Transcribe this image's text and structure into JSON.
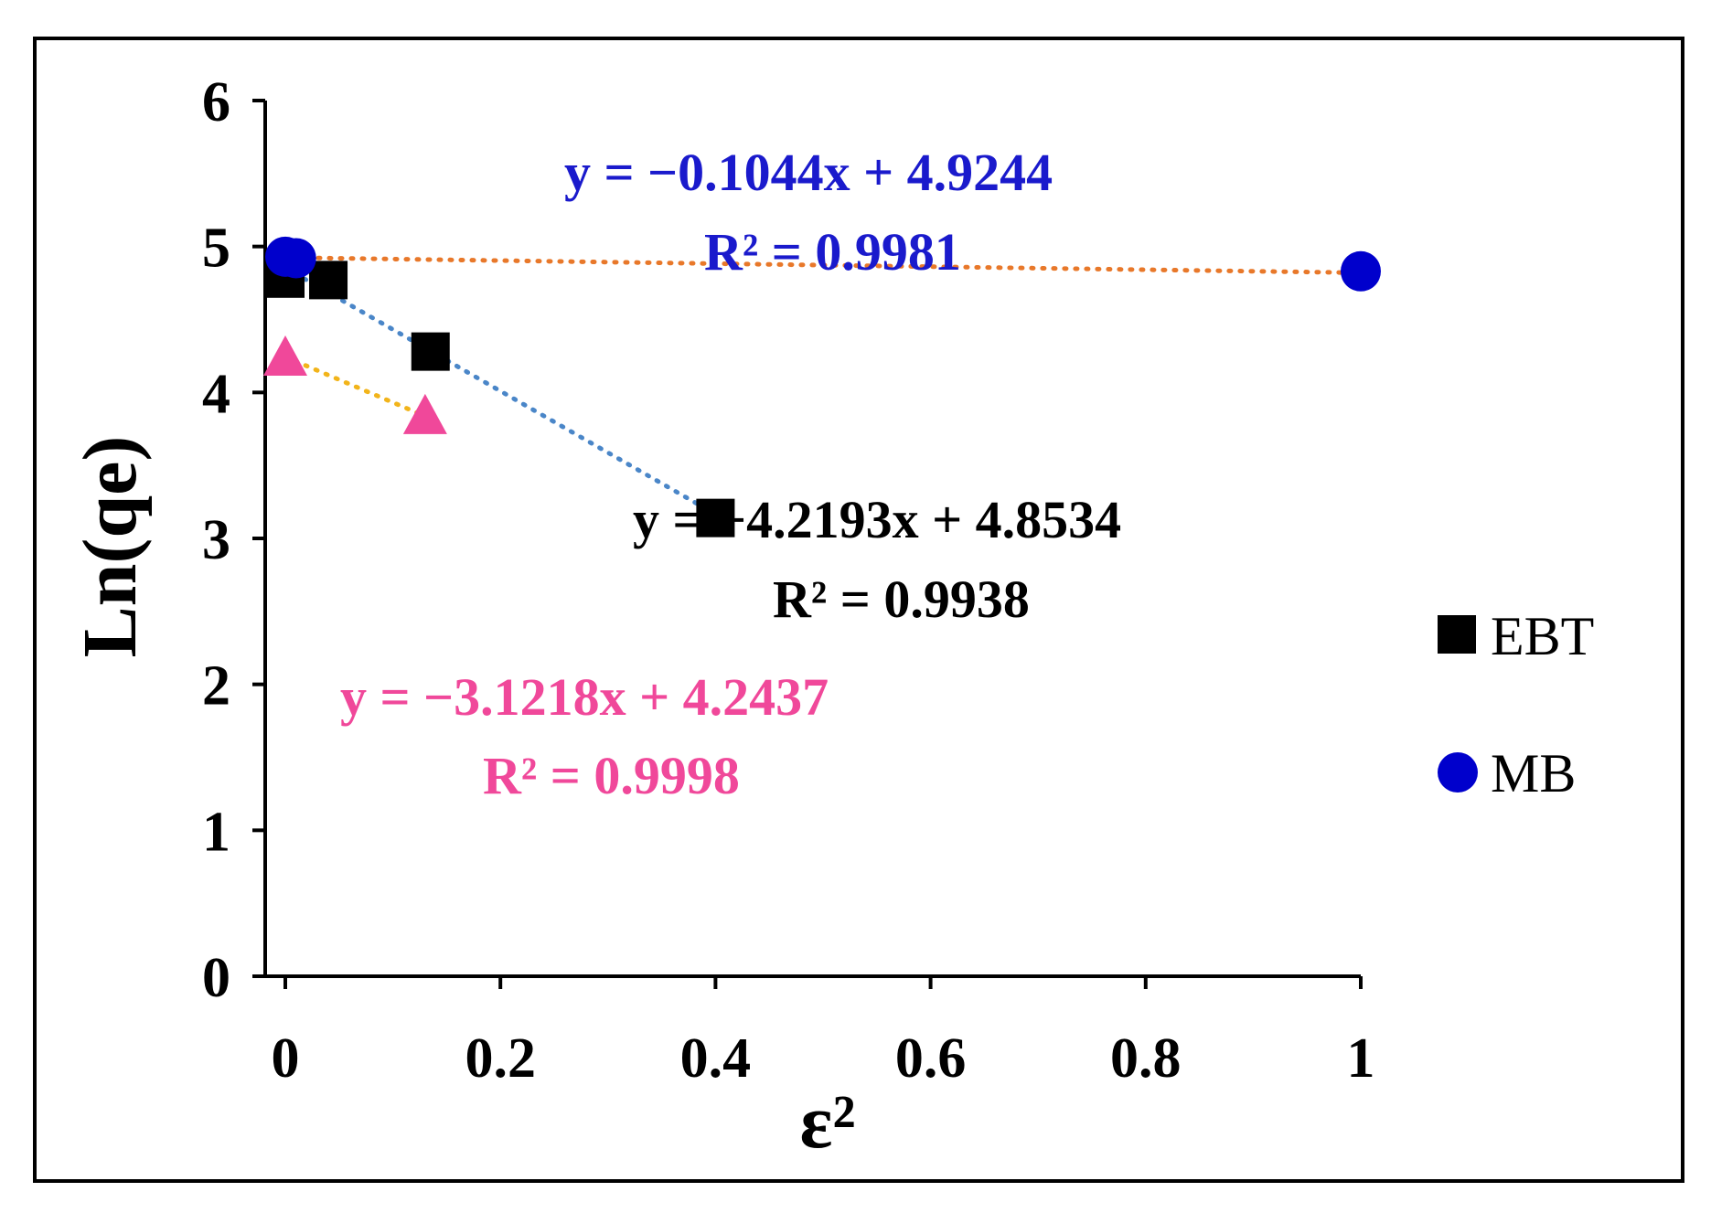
{
  "chart_data": {
    "type": "scatter",
    "xlabel": "ε²",
    "ylabel": "Ln(qe)",
    "xlim": [
      0,
      1
    ],
    "ylim": [
      0,
      6
    ],
    "x_ticks": [
      0,
      0.2,
      0.4,
      0.6,
      0.8,
      1
    ],
    "x_tick_labels": [
      "0",
      "0.2",
      "0.4",
      "0.6",
      "0.8",
      "1"
    ],
    "y_ticks": [
      0,
      1,
      2,
      3,
      4,
      5,
      6
    ],
    "y_tick_labels": [
      "0",
      "1",
      "2",
      "3",
      "4",
      "5",
      "6"
    ],
    "grid": false,
    "legend_position": "right",
    "series": [
      {
        "name": "EBT",
        "marker": "square",
        "color": "#000000",
        "points": [
          [
            0.0,
            4.78
          ],
          [
            0.04,
            4.77
          ],
          [
            0.135,
            4.28
          ],
          [
            0.4,
            3.14
          ]
        ],
        "trend_color": "#4a86c8",
        "trend_xrange": [
          0.0,
          0.4
        ]
      },
      {
        "name": "MB",
        "marker": "circle",
        "color": "#0000cc",
        "points": [
          [
            0.0,
            4.93
          ],
          [
            0.01,
            4.92
          ],
          [
            1.0,
            4.83
          ]
        ],
        "trend_color": "#e8782a",
        "trend_xrange": [
          0.0,
          1.0
        ]
      },
      {
        "marker": "triangle",
        "color": "#f0489a",
        "points": [
          [
            0.0,
            4.24
          ],
          [
            0.13,
            3.84
          ]
        ],
        "trend_color": "#f2b41a",
        "trend_xrange": [
          0.0,
          0.13
        ]
      }
    ],
    "annotations": [
      {
        "line1": "y = −0.1044x + 4.9244",
        "line2": "R² = 0.9981",
        "color": "#1a1acc"
      },
      {
        "line1": "y = −4.2193x + 4.8534",
        "line2": "R² = 0.9938",
        "color": "#000000"
      },
      {
        "line1": "y = −3.1218x + 4.2437",
        "line2": "R² = 0.9998",
        "color": "#f0489a"
      }
    ]
  }
}
